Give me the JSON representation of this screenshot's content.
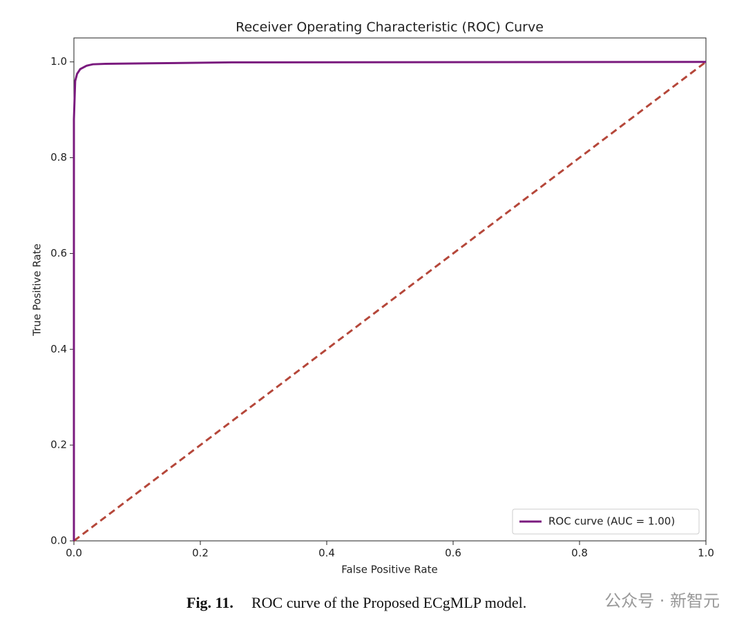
{
  "chart_data": {
    "type": "line",
    "title": "Receiver Operating Characteristic (ROC) Curve",
    "xlabel": "False Positive Rate",
    "ylabel": "True Positive Rate",
    "series": [
      {
        "name": "ROC curve (AUC = 1.00)",
        "color": "#7a1a7e",
        "x": [
          0,
          0,
          0.002,
          0.005,
          0.01,
          0.02,
          0.03,
          0.05,
          0.12,
          0.25,
          1
        ],
        "values": [
          0,
          0.88,
          0.96,
          0.975,
          0.985,
          0.992,
          0.995,
          0.996,
          0.997,
          0.999,
          1
        ]
      }
    ],
    "reference_line": {
      "x": [
        0,
        1
      ],
      "values": [
        0,
        1
      ],
      "color": "#b5473a",
      "dashed": true
    },
    "xlim": [
      0,
      1
    ],
    "ylim": [
      0,
      1.05
    ],
    "xticks": [
      {
        "value": 0,
        "label": "0.0"
      },
      0.2,
      0.4,
      0.6,
      0.8,
      {
        "value": 1,
        "label": "1.0"
      }
    ],
    "yticks": [
      {
        "value": 0,
        "label": "0.0"
      },
      0.2,
      0.4,
      0.6,
      0.8,
      {
        "value": 1,
        "label": "1.0"
      }
    ],
    "legend": "lower right"
  },
  "caption": {
    "label": "Fig. 11.",
    "text": "ROC curve of the Proposed ECgMLP model."
  },
  "watermark": "公众号 · 新智元"
}
